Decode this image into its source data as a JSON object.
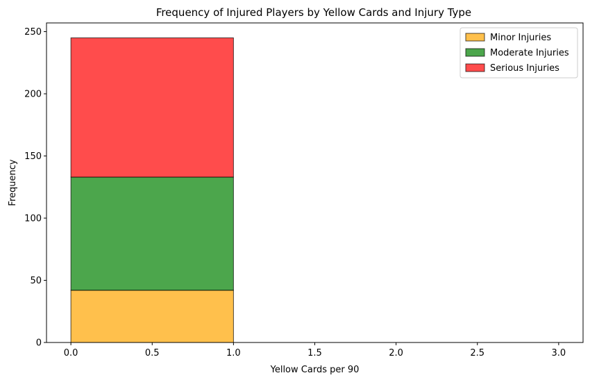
{
  "chart_data": {
    "type": "bar",
    "stacked": true,
    "title": "Frequency of Injured Players by Yellow Cards and Injury Type",
    "xlabel": "Yellow Cards per 90",
    "ylabel": "Frequency",
    "xlim": [
      -0.15,
      3.15
    ],
    "ylim": [
      0,
      257
    ],
    "xticks": [
      0.0,
      0.5,
      1.0,
      1.5,
      2.0,
      2.5,
      3.0
    ],
    "xtick_labels": [
      "0.0",
      "0.5",
      "1.0",
      "1.5",
      "2.0",
      "2.5",
      "3.0"
    ],
    "yticks": [
      0,
      50,
      100,
      150,
      200,
      250
    ],
    "ytick_labels": [
      "0",
      "50",
      "100",
      "150",
      "200",
      "250"
    ],
    "bins": [
      [
        0,
        1
      ],
      [
        1,
        2
      ],
      [
        2,
        3
      ]
    ],
    "grid": false,
    "legend_position": "top-right",
    "series": [
      {
        "name": "Minor Injuries",
        "color": "#ffa500",
        "values": [
          42,
          0,
          0
        ]
      },
      {
        "name": "Moderate Injuries",
        "color": "#008000",
        "values": [
          91,
          0,
          0
        ]
      },
      {
        "name": "Serious Injuries",
        "color": "#ff0000",
        "values": [
          112,
          0,
          0
        ]
      }
    ]
  }
}
